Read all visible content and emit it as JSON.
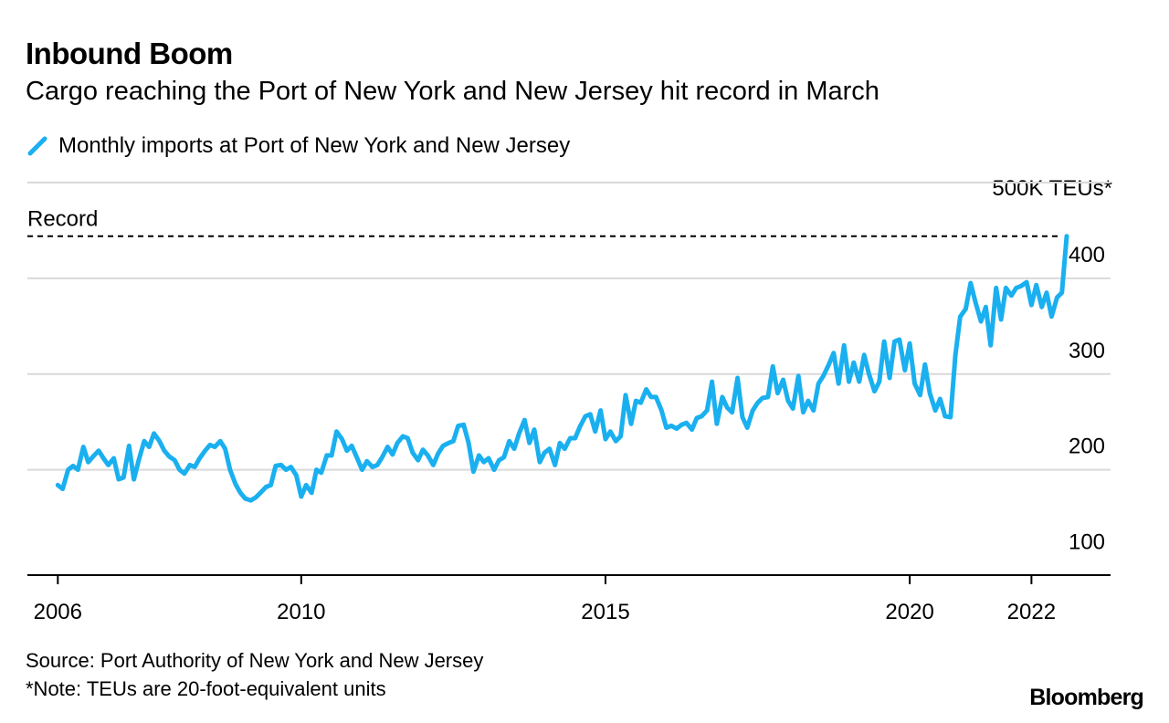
{
  "header": {
    "title": "Inbound Boom",
    "subtitle": "Cargo reaching the Port of New York and New Jersey hit record in March"
  },
  "legend": {
    "label": "Monthly imports at Port of New York and New Jersey"
  },
  "colors": {
    "series": "#1ab0f0",
    "grid": "#d9d9d9",
    "axis": "#000000",
    "record": "#000000"
  },
  "footer": {
    "source": "Source: Port Authority of New York and New Jersey",
    "note": "*Note: TEUs are 20-foot-equivalent units",
    "brand": "Bloomberg"
  },
  "chart_data": {
    "type": "line",
    "title": "Inbound Boom",
    "ylabel": "500K TEUs*",
    "xlabel": "",
    "ylim": [
      90,
      500
    ],
    "xlim": [
      2005.5,
      2023.3
    ],
    "y_ticks": [
      100,
      200,
      300,
      400
    ],
    "y_tick_labels": [
      "100",
      "200",
      "300",
      "400"
    ],
    "gridlines": [
      200,
      300,
      400,
      500
    ],
    "x_ticks": [
      2006,
      2010,
      2015,
      2020,
      2022
    ],
    "x_tick_labels": [
      "2006",
      "2010",
      "2015",
      "2020",
      "2022"
    ],
    "annotations": [
      {
        "label": "Record",
        "value": 444
      }
    ],
    "series": [
      {
        "name": "Monthly imports at Port of New York and New Jersey",
        "points": [
          [
            2006.0,
            184
          ],
          [
            2006.08,
            180
          ],
          [
            2006.17,
            200
          ],
          [
            2006.25,
            204
          ],
          [
            2006.33,
            200
          ],
          [
            2006.42,
            224
          ],
          [
            2006.5,
            208
          ],
          [
            2006.58,
            214
          ],
          [
            2006.67,
            220
          ],
          [
            2006.75,
            212
          ],
          [
            2006.83,
            205
          ],
          [
            2006.92,
            212
          ],
          [
            2007.0,
            190
          ],
          [
            2007.08,
            192
          ],
          [
            2007.17,
            225
          ],
          [
            2007.25,
            190
          ],
          [
            2007.33,
            210
          ],
          [
            2007.42,
            230
          ],
          [
            2007.5,
            224
          ],
          [
            2007.58,
            238
          ],
          [
            2007.67,
            230
          ],
          [
            2007.75,
            220
          ],
          [
            2007.83,
            214
          ],
          [
            2007.92,
            210
          ],
          [
            2008.0,
            200
          ],
          [
            2008.08,
            196
          ],
          [
            2008.17,
            205
          ],
          [
            2008.25,
            203
          ],
          [
            2008.33,
            212
          ],
          [
            2008.42,
            220
          ],
          [
            2008.5,
            226
          ],
          [
            2008.58,
            224
          ],
          [
            2008.67,
            230
          ],
          [
            2008.75,
            222
          ],
          [
            2008.83,
            200
          ],
          [
            2008.92,
            185
          ],
          [
            2009.0,
            176
          ],
          [
            2009.08,
            170
          ],
          [
            2009.17,
            168
          ],
          [
            2009.25,
            171
          ],
          [
            2009.33,
            176
          ],
          [
            2009.42,
            182
          ],
          [
            2009.5,
            184
          ],
          [
            2009.58,
            204
          ],
          [
            2009.67,
            205
          ],
          [
            2009.75,
            200
          ],
          [
            2009.83,
            203
          ],
          [
            2009.92,
            194
          ],
          [
            2010.0,
            172
          ],
          [
            2010.08,
            184
          ],
          [
            2010.17,
            176
          ],
          [
            2010.25,
            200
          ],
          [
            2010.33,
            197
          ],
          [
            2010.42,
            215
          ],
          [
            2010.5,
            215
          ],
          [
            2010.58,
            240
          ],
          [
            2010.67,
            232
          ],
          [
            2010.75,
            220
          ],
          [
            2010.83,
            225
          ],
          [
            2010.92,
            212
          ],
          [
            2011.0,
            200
          ],
          [
            2011.08,
            209
          ],
          [
            2011.17,
            203
          ],
          [
            2011.25,
            205
          ],
          [
            2011.33,
            213
          ],
          [
            2011.42,
            224
          ],
          [
            2011.5,
            216
          ],
          [
            2011.58,
            228
          ],
          [
            2011.67,
            235
          ],
          [
            2011.75,
            233
          ],
          [
            2011.83,
            218
          ],
          [
            2011.92,
            210
          ],
          [
            2012.0,
            221
          ],
          [
            2012.08,
            215
          ],
          [
            2012.17,
            205
          ],
          [
            2012.25,
            217
          ],
          [
            2012.33,
            225
          ],
          [
            2012.42,
            228
          ],
          [
            2012.5,
            230
          ],
          [
            2012.58,
            246
          ],
          [
            2012.67,
            247
          ],
          [
            2012.75,
            228
          ],
          [
            2012.83,
            198
          ],
          [
            2012.92,
            215
          ],
          [
            2013.0,
            208
          ],
          [
            2013.08,
            212
          ],
          [
            2013.17,
            200
          ],
          [
            2013.25,
            210
          ],
          [
            2013.33,
            213
          ],
          [
            2013.42,
            230
          ],
          [
            2013.5,
            222
          ],
          [
            2013.58,
            238
          ],
          [
            2013.67,
            252
          ],
          [
            2013.75,
            228
          ],
          [
            2013.83,
            242
          ],
          [
            2013.92,
            208
          ],
          [
            2014.0,
            218
          ],
          [
            2014.08,
            222
          ],
          [
            2014.17,
            205
          ],
          [
            2014.25,
            228
          ],
          [
            2014.33,
            222
          ],
          [
            2014.42,
            233
          ],
          [
            2014.5,
            233
          ],
          [
            2014.58,
            245
          ],
          [
            2014.67,
            256
          ],
          [
            2014.75,
            258
          ],
          [
            2014.83,
            240
          ],
          [
            2014.92,
            262
          ],
          [
            2015.0,
            232
          ],
          [
            2015.08,
            240
          ],
          [
            2015.17,
            230
          ],
          [
            2015.25,
            235
          ],
          [
            2015.33,
            278
          ],
          [
            2015.42,
            248
          ],
          [
            2015.5,
            272
          ],
          [
            2015.58,
            270
          ],
          [
            2015.67,
            284
          ],
          [
            2015.75,
            276
          ],
          [
            2015.83,
            276
          ],
          [
            2015.92,
            262
          ],
          [
            2016.0,
            244
          ],
          [
            2016.08,
            246
          ],
          [
            2016.17,
            243
          ],
          [
            2016.25,
            247
          ],
          [
            2016.33,
            249
          ],
          [
            2016.42,
            242
          ],
          [
            2016.5,
            254
          ],
          [
            2016.58,
            256
          ],
          [
            2016.67,
            262
          ],
          [
            2016.75,
            292
          ],
          [
            2016.83,
            248
          ],
          [
            2016.92,
            276
          ],
          [
            2017.0,
            265
          ],
          [
            2017.08,
            260
          ],
          [
            2017.17,
            296
          ],
          [
            2017.25,
            255
          ],
          [
            2017.33,
            244
          ],
          [
            2017.42,
            262
          ],
          [
            2017.5,
            270
          ],
          [
            2017.58,
            275
          ],
          [
            2017.67,
            276
          ],
          [
            2017.75,
            308
          ],
          [
            2017.83,
            280
          ],
          [
            2017.92,
            294
          ],
          [
            2018.0,
            272
          ],
          [
            2018.08,
            264
          ],
          [
            2018.17,
            298
          ],
          [
            2018.25,
            260
          ],
          [
            2018.33,
            272
          ],
          [
            2018.42,
            262
          ],
          [
            2018.5,
            290
          ],
          [
            2018.58,
            298
          ],
          [
            2018.67,
            310
          ],
          [
            2018.75,
            322
          ],
          [
            2018.83,
            290
          ],
          [
            2018.92,
            330
          ],
          [
            2019.0,
            292
          ],
          [
            2019.08,
            312
          ],
          [
            2019.17,
            292
          ],
          [
            2019.25,
            320
          ],
          [
            2019.33,
            300
          ],
          [
            2019.42,
            282
          ],
          [
            2019.5,
            292
          ],
          [
            2019.58,
            334
          ],
          [
            2019.67,
            296
          ],
          [
            2019.75,
            334
          ],
          [
            2019.83,
            336
          ],
          [
            2019.92,
            304
          ],
          [
            2020.0,
            332
          ],
          [
            2020.08,
            290
          ],
          [
            2020.17,
            278
          ],
          [
            2020.25,
            310
          ],
          [
            2020.33,
            280
          ],
          [
            2020.42,
            262
          ],
          [
            2020.5,
            274
          ],
          [
            2020.58,
            256
          ],
          [
            2020.67,
            255
          ],
          [
            2020.75,
            320
          ],
          [
            2020.83,
            360
          ],
          [
            2020.92,
            368
          ],
          [
            2021.0,
            395
          ],
          [
            2021.08,
            375
          ],
          [
            2021.17,
            355
          ],
          [
            2021.25,
            370
          ],
          [
            2021.33,
            330
          ],
          [
            2021.42,
            390
          ],
          [
            2021.5,
            357
          ],
          [
            2021.58,
            390
          ],
          [
            2021.67,
            382
          ],
          [
            2021.75,
            390
          ],
          [
            2021.83,
            392
          ],
          [
            2021.92,
            396
          ],
          [
            2022.0,
            372
          ],
          [
            2022.08,
            393
          ],
          [
            2022.17,
            370
          ],
          [
            2022.25,
            385
          ],
          [
            2022.33,
            360
          ],
          [
            2022.42,
            380
          ],
          [
            2022.5,
            385
          ],
          [
            2022.58,
            444
          ]
        ]
      }
    ]
  }
}
